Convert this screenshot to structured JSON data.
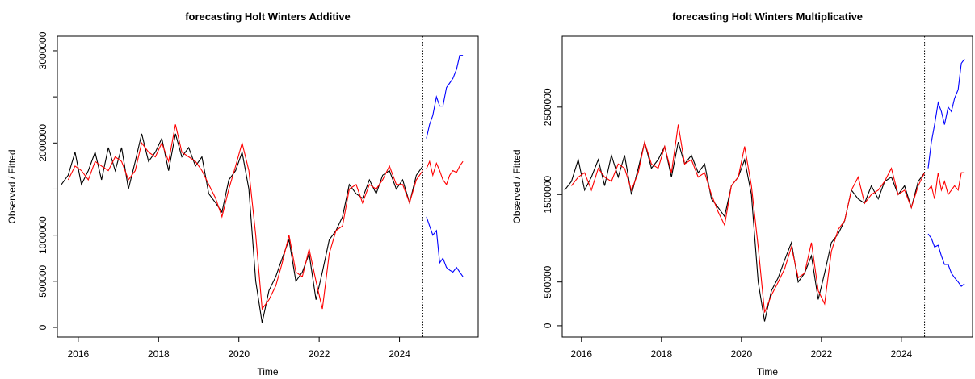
{
  "chart_data": [
    {
      "type": "line",
      "title": "forecasting Holt Winters Additive",
      "xlabel": "Time",
      "ylabel": "Observed / Fitted",
      "xlim": [
        2015.48,
        2025.96
      ],
      "ylim": [
        -105000,
        3157000
      ],
      "xticks": [
        2016,
        2018,
        2020,
        2022,
        2024
      ],
      "yticks": [
        0,
        500000,
        1000000,
        1500000,
        2000000,
        2500000,
        3000000
      ],
      "ytick_labels_shown": [
        0,
        500000,
        1000000,
        2000000,
        3000000
      ],
      "vline": 2024.58,
      "series": [
        {
          "color": "#000000",
          "x": [
            2015.58,
            2015.75,
            2015.92,
            2016.08,
            2016.25,
            2016.42,
            2016.58,
            2016.75,
            2016.92,
            2017.08,
            2017.25,
            2017.42,
            2017.58,
            2017.75,
            2017.92,
            2018.08,
            2018.25,
            2018.42,
            2018.58,
            2018.75,
            2018.92,
            2019.08,
            2019.25,
            2019.42,
            2019.58,
            2019.75,
            2019.92,
            2020.08,
            2020.25,
            2020.42,
            2020.58,
            2020.75,
            2020.92,
            2021.08,
            2021.25,
            2021.42,
            2021.58,
            2021.75,
            2021.92,
            2022.08,
            2022.25,
            2022.42,
            2022.58,
            2022.75,
            2022.92,
            2023.08,
            2023.25,
            2023.42,
            2023.58,
            2023.75,
            2023.92,
            2024.08,
            2024.25,
            2024.42,
            2024.58
          ],
          "values": [
            1550000,
            1650000,
            1900000,
            1550000,
            1700000,
            1900000,
            1600000,
            1950000,
            1700000,
            1950000,
            1500000,
            1800000,
            2100000,
            1800000,
            1900000,
            2050000,
            1700000,
            2100000,
            1850000,
            1950000,
            1750000,
            1850000,
            1450000,
            1350000,
            1250000,
            1600000,
            1700000,
            1900000,
            1500000,
            500000,
            50000,
            400000,
            550000,
            750000,
            950000,
            500000,
            600000,
            800000,
            300000,
            600000,
            950000,
            1050000,
            1200000,
            1550000,
            1450000,
            1400000,
            1600000,
            1450000,
            1650000,
            1700000,
            1500000,
            1600000,
            1350000,
            1650000,
            1750000
          ]
        },
        {
          "color": "#ff0000",
          "x": [
            2015.75,
            2015.92,
            2016.08,
            2016.25,
            2016.42,
            2016.58,
            2016.75,
            2016.92,
            2017.08,
            2017.25,
            2017.42,
            2017.58,
            2017.75,
            2017.92,
            2018.08,
            2018.25,
            2018.42,
            2018.58,
            2018.75,
            2018.92,
            2019.08,
            2019.25,
            2019.42,
            2019.58,
            2019.75,
            2019.92,
            2020.08,
            2020.25,
            2020.42,
            2020.58,
            2020.75,
            2020.92,
            2021.08,
            2021.25,
            2021.42,
            2021.58,
            2021.75,
            2021.92,
            2022.08,
            2022.25,
            2022.42,
            2022.58,
            2022.75,
            2022.92,
            2023.08,
            2023.25,
            2023.42,
            2023.58,
            2023.75,
            2023.92,
            2024.08,
            2024.25,
            2024.42,
            2024.58
          ],
          "values": [
            1600000,
            1750000,
            1700000,
            1600000,
            1800000,
            1750000,
            1700000,
            1850000,
            1800000,
            1600000,
            1700000,
            2000000,
            1900000,
            1850000,
            2000000,
            1800000,
            2200000,
            1900000,
            1850000,
            1800000,
            1700000,
            1550000,
            1400000,
            1200000,
            1500000,
            1750000,
            2000000,
            1700000,
            1000000,
            200000,
            300000,
            450000,
            700000,
            1000000,
            600000,
            550000,
            850000,
            500000,
            200000,
            800000,
            1050000,
            1100000,
            1500000,
            1550000,
            1350000,
            1550000,
            1500000,
            1600000,
            1750000,
            1550000,
            1550000,
            1350000,
            1600000,
            1700000
          ]
        },
        {
          "color": "#ff0000",
          "x": [
            2024.67,
            2024.75,
            2024.83,
            2024.92,
            2025.0,
            2025.08,
            2025.17,
            2025.25,
            2025.33,
            2025.42,
            2025.5,
            2025.58
          ],
          "values": [
            1720000,
            1800000,
            1650000,
            1780000,
            1700000,
            1600000,
            1550000,
            1650000,
            1700000,
            1680000,
            1750000,
            1800000
          ]
        },
        {
          "color": "#0000ff",
          "x": [
            2024.67,
            2024.75,
            2024.83,
            2024.92,
            2025.0,
            2025.08,
            2025.17,
            2025.25,
            2025.33,
            2025.42,
            2025.5,
            2025.58
          ],
          "values": [
            2050000,
            2200000,
            2300000,
            2500000,
            2400000,
            2400000,
            2600000,
            2650000,
            2700000,
            2800000,
            2950000,
            2950000
          ]
        },
        {
          "color": "#0000ff",
          "x": [
            2024.67,
            2024.75,
            2024.83,
            2024.92,
            2025.0,
            2025.08,
            2025.17,
            2025.25,
            2025.33,
            2025.42,
            2025.5,
            2025.58
          ],
          "values": [
            1200000,
            1100000,
            1000000,
            1050000,
            700000,
            750000,
            650000,
            620000,
            600000,
            650000,
            600000,
            550000
          ]
        }
      ]
    },
    {
      "type": "line",
      "title": "forecasting Holt Winters Multiplicative",
      "xlabel": "Time",
      "ylabel": "Observed / Fitted",
      "xlim": [
        2015.52,
        2025.78
      ],
      "ylim": [
        -130000,
        3310000
      ],
      "xticks": [
        2016,
        2018,
        2020,
        2022,
        2024
      ],
      "yticks": [
        0,
        500000,
        1500000,
        2500000
      ],
      "ytick_labels_shown": [
        0,
        500000,
        1500000,
        2500000
      ],
      "vline": 2024.58,
      "series": [
        {
          "color": "#000000",
          "x": [
            2015.58,
            2015.75,
            2015.92,
            2016.08,
            2016.25,
            2016.42,
            2016.58,
            2016.75,
            2016.92,
            2017.08,
            2017.25,
            2017.42,
            2017.58,
            2017.75,
            2017.92,
            2018.08,
            2018.25,
            2018.42,
            2018.58,
            2018.75,
            2018.92,
            2019.08,
            2019.25,
            2019.42,
            2019.58,
            2019.75,
            2019.92,
            2020.08,
            2020.25,
            2020.42,
            2020.58,
            2020.75,
            2020.92,
            2021.08,
            2021.25,
            2021.42,
            2021.58,
            2021.75,
            2021.92,
            2022.08,
            2022.25,
            2022.42,
            2022.58,
            2022.75,
            2022.92,
            2023.08,
            2023.25,
            2023.42,
            2023.58,
            2023.75,
            2023.92,
            2024.08,
            2024.25,
            2024.42,
            2024.58
          ],
          "values": [
            1550000,
            1650000,
            1900000,
            1550000,
            1700000,
            1900000,
            1600000,
            1950000,
            1700000,
            1950000,
            1500000,
            1800000,
            2100000,
            1800000,
            1900000,
            2050000,
            1700000,
            2100000,
            1850000,
            1950000,
            1750000,
            1850000,
            1450000,
            1350000,
            1250000,
            1600000,
            1700000,
            1900000,
            1500000,
            500000,
            50000,
            400000,
            550000,
            750000,
            950000,
            500000,
            600000,
            800000,
            300000,
            600000,
            950000,
            1050000,
            1200000,
            1550000,
            1450000,
            1400000,
            1600000,
            1450000,
            1650000,
            1700000,
            1500000,
            1600000,
            1350000,
            1650000,
            1750000
          ]
        },
        {
          "color": "#ff0000",
          "x": [
            2015.75,
            2015.92,
            2016.08,
            2016.25,
            2016.42,
            2016.58,
            2016.75,
            2016.92,
            2017.08,
            2017.25,
            2017.42,
            2017.58,
            2017.75,
            2017.92,
            2018.08,
            2018.25,
            2018.42,
            2018.58,
            2018.75,
            2018.92,
            2019.08,
            2019.25,
            2019.42,
            2019.58,
            2019.75,
            2019.92,
            2020.08,
            2020.25,
            2020.42,
            2020.58,
            2020.75,
            2020.92,
            2021.08,
            2021.25,
            2021.42,
            2021.58,
            2021.75,
            2021.92,
            2022.08,
            2022.25,
            2022.42,
            2022.58,
            2022.75,
            2022.92,
            2023.08,
            2023.25,
            2023.42,
            2023.58,
            2023.75,
            2023.92,
            2024.08,
            2024.25,
            2024.42,
            2024.58
          ],
          "values": [
            1600000,
            1700000,
            1750000,
            1550000,
            1800000,
            1700000,
            1650000,
            1850000,
            1800000,
            1550000,
            1750000,
            2100000,
            1850000,
            1800000,
            2050000,
            1750000,
            2300000,
            1850000,
            1900000,
            1700000,
            1750000,
            1500000,
            1300000,
            1150000,
            1600000,
            1700000,
            2050000,
            1600000,
            900000,
            150000,
            350000,
            500000,
            650000,
            900000,
            550000,
            600000,
            950000,
            400000,
            250000,
            850000,
            1100000,
            1200000,
            1550000,
            1700000,
            1400000,
            1500000,
            1550000,
            1650000,
            1800000,
            1500000,
            1550000,
            1350000,
            1600000,
            1750000
          ]
        },
        {
          "color": "#ff0000",
          "x": [
            2024.67,
            2024.75,
            2024.83,
            2024.92,
            2025.0,
            2025.08,
            2025.17,
            2025.25,
            2025.33,
            2025.42,
            2025.5,
            2025.58
          ],
          "values": [
            1550000,
            1600000,
            1450000,
            1750000,
            1550000,
            1650000,
            1500000,
            1550000,
            1600000,
            1550000,
            1750000,
            1750000
          ]
        },
        {
          "color": "#0000ff",
          "x": [
            2024.67,
            2024.75,
            2024.83,
            2024.92,
            2025.0,
            2025.08,
            2025.17,
            2025.25,
            2025.33,
            2025.42,
            2025.5,
            2025.58
          ],
          "values": [
            1800000,
            2100000,
            2300000,
            2550000,
            2450000,
            2300000,
            2500000,
            2450000,
            2600000,
            2700000,
            3000000,
            3050000
          ]
        },
        {
          "color": "#0000ff",
          "x": [
            2024.67,
            2024.75,
            2024.83,
            2024.92,
            2025.0,
            2025.08,
            2025.17,
            2025.25,
            2025.33,
            2025.42,
            2025.5,
            2025.58
          ],
          "values": [
            1050000,
            1000000,
            900000,
            920000,
            800000,
            700000,
            700000,
            600000,
            550000,
            500000,
            450000,
            480000
          ]
        }
      ]
    }
  ]
}
